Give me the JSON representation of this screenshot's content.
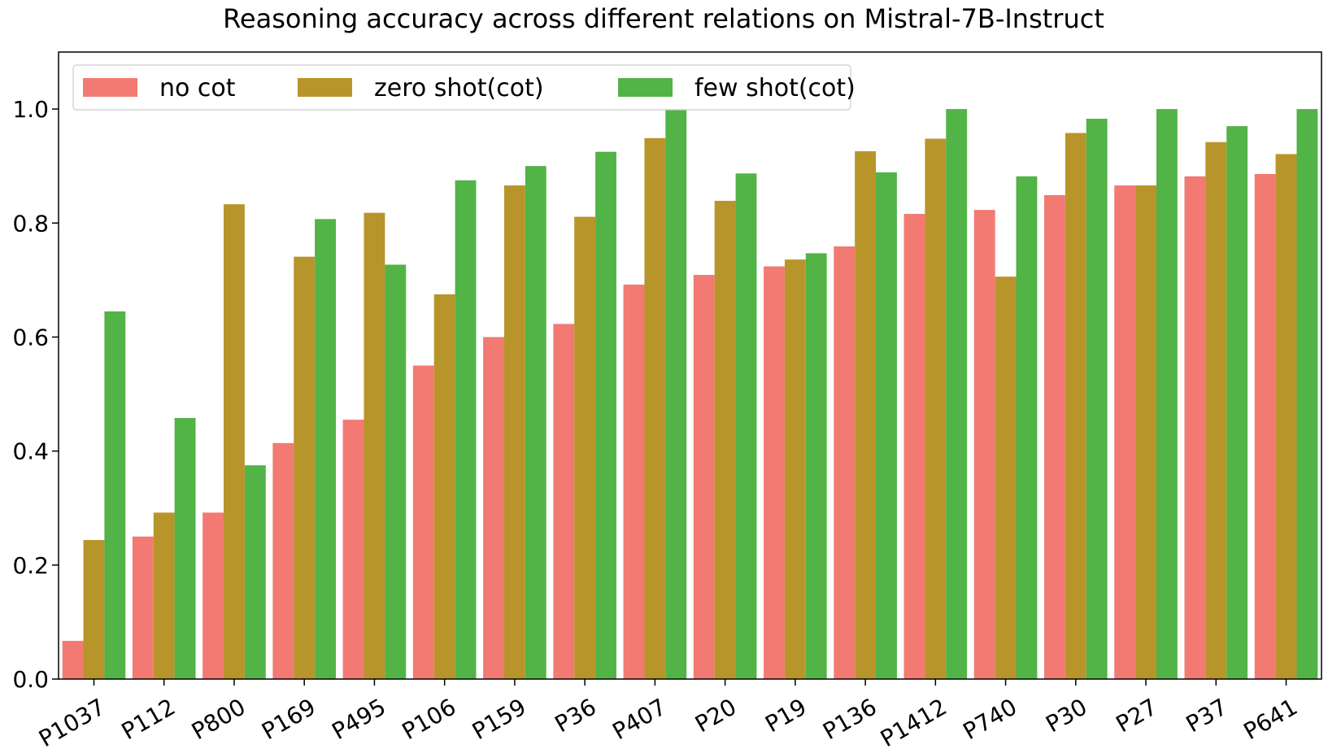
{
  "chart_data": {
    "type": "bar",
    "title": "Reasoning accuracy across different relations on Mistral-7B-Instruct",
    "xlabel": "",
    "ylabel": "",
    "ylim": [
      0,
      1.1
    ],
    "yticks": [
      "0.0",
      "0.2",
      "0.4",
      "0.6",
      "0.8",
      "1.0"
    ],
    "categories": [
      "P1037",
      "P112",
      "P800",
      "P169",
      "P495",
      "P106",
      "P159",
      "P36",
      "P407",
      "P20",
      "P19",
      "P136",
      "P1412",
      "P740",
      "P30",
      "P27",
      "P37",
      "P641"
    ],
    "series": [
      {
        "name": "no cot",
        "color": "#f27a72",
        "values": [
          0.067,
          0.25,
          0.292,
          0.414,
          0.455,
          0.55,
          0.6,
          0.623,
          0.692,
          0.709,
          0.724,
          0.759,
          0.816,
          0.823,
          0.849,
          0.866,
          0.882,
          0.886
        ]
      },
      {
        "name": "zero shot(cot)",
        "color": "#b8952a",
        "values": [
          0.244,
          0.292,
          0.833,
          0.741,
          0.818,
          0.675,
          0.866,
          0.811,
          0.949,
          0.839,
          0.736,
          0.926,
          0.948,
          0.706,
          0.958,
          0.866,
          0.942,
          0.921
        ]
      },
      {
        "name": "few shot(cot)",
        "color": "#52b346",
        "values": [
          0.645,
          0.458,
          0.375,
          0.807,
          0.727,
          0.875,
          0.9,
          0.925,
          1.0,
          0.887,
          0.747,
          0.889,
          1.0,
          0.882,
          0.983,
          1.0,
          0.97,
          1.0
        ]
      }
    ],
    "legend_position": "top-left",
    "grid": false
  }
}
